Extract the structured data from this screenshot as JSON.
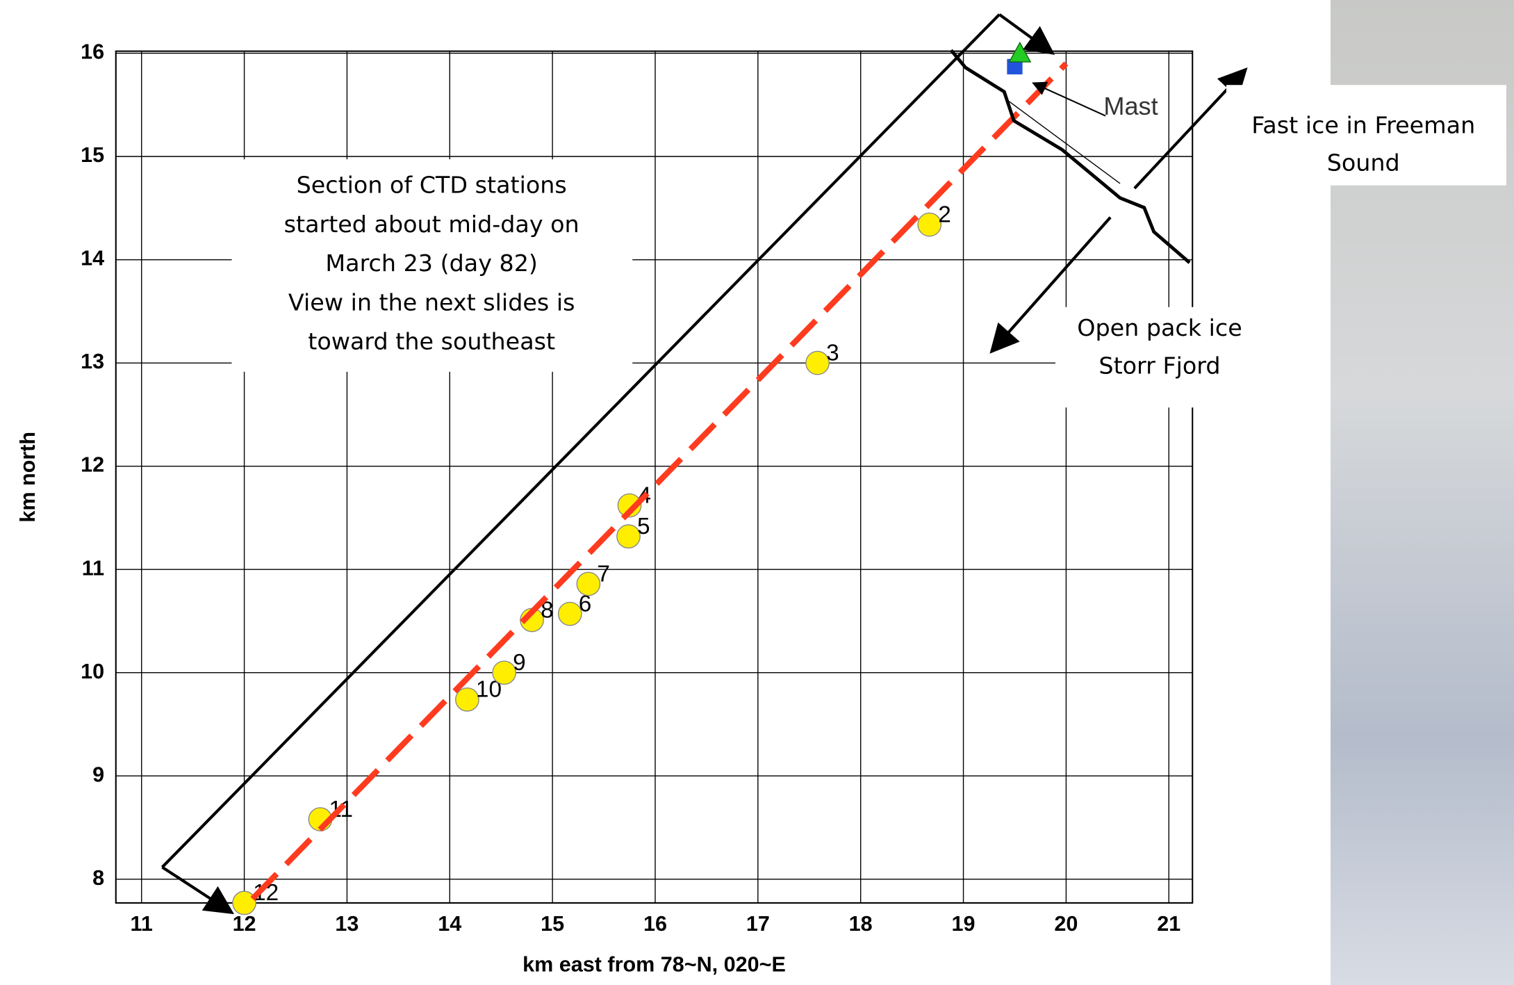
{
  "chart_data": {
    "type": "scatter",
    "xlabel": "km east from 78~N, 020~E",
    "ylabel": "km north",
    "xlim": [
      10.75,
      21.23
    ],
    "ylim": [
      7.77,
      16.02
    ],
    "xticks": [
      11,
      12,
      13,
      14,
      15,
      16,
      17,
      18,
      19,
      20,
      21
    ],
    "yticks": [
      8,
      9,
      10,
      11,
      12,
      13,
      14,
      15,
      16
    ],
    "grid": true,
    "points": {
      "color": "#ffee00",
      "x": [
        12.0,
        12.74,
        14.17,
        14.53,
        14.8,
        15.17,
        15.35,
        15.74,
        15.75,
        17.58,
        18.67
      ],
      "y": [
        7.77,
        8.58,
        9.74,
        10.0,
        10.51,
        10.57,
        10.86,
        11.32,
        11.62,
        13.0,
        14.34
      ],
      "labels": [
        "12",
        "11",
        "10",
        "9",
        "8",
        "6",
        "7",
        "5",
        "4",
        "3",
        "2"
      ]
    },
    "section_line": {
      "color": "#ff3b1f",
      "x": [
        12.08,
        20.0
      ],
      "y": [
        7.81,
        15.9
      ]
    },
    "mast_triangle": {
      "color": "#22cc22",
      "x": 19.55,
      "y": 16.0
    },
    "mast_square": {
      "color": "#2255dd",
      "x": 19.5,
      "y": 15.87
    },
    "mast_label": "Mast",
    "annotation": [
      "Section of CTD stations",
      "started about mid-day on",
      "March 23 (day 82)",
      "View in the next slides is",
      "toward the southeast"
    ],
    "fast_ice_label": [
      "Fast ice in Freeman",
      "Sound"
    ],
    "open_pack_label": [
      "Open pack ice",
      "Storr Fjord"
    ]
  }
}
